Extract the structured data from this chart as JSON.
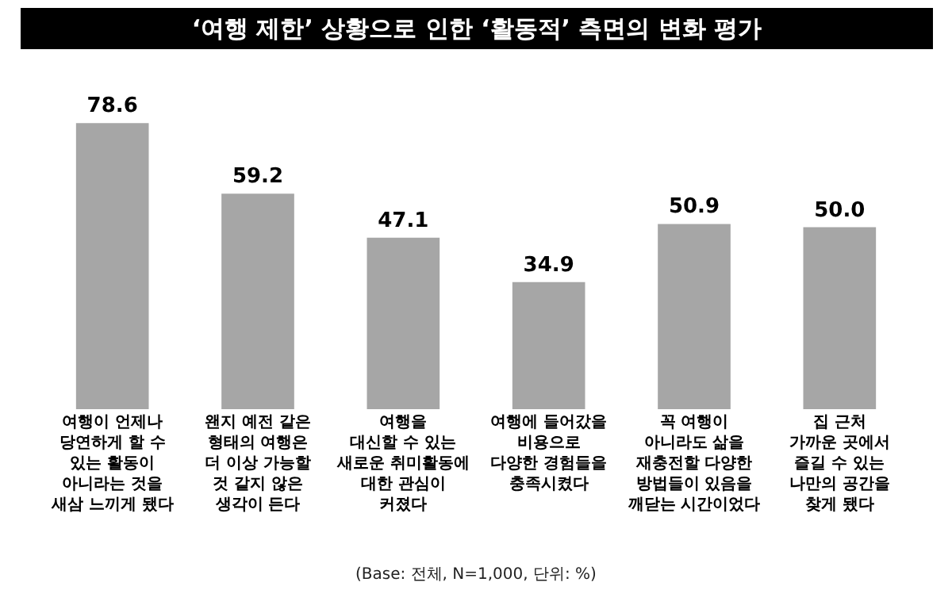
{
  "chart_data": {
    "type": "bar",
    "title": "‘여행 제한’ 상황으로 인한 ‘활동적’ 측면의 변화 평가",
    "categories": [
      "여행이 언제나\n당연하게 할 수\n있는 활동이\n아니라는 것을\n새삼 느끼게 됐다",
      "왠지 예전 같은\n형태의 여행은\n더 이상 가능할\n것 같지 않은\n생각이 든다",
      "여행을\n대신할 수 있는\n새로운 취미활동에\n대한 관심이\n커졌다",
      "여행에 들어갔을\n비용으로\n다양한 경험들을\n충족시켰다",
      "꼭 여행이\n아니라도 삶을\n재충전할 다양한\n방법들이 있음을\n깨닫는 시간이었다",
      "집 근처\n가까운 곳에서\n즐길 수 있는\n나만의 공간을\n찾게 됐다"
    ],
    "values": [
      78.6,
      59.2,
      47.1,
      34.9,
      50.9,
      50.0
    ],
    "value_labels": [
      "78.6",
      "59.2",
      "47.1",
      "34.9",
      "50.9",
      "50.0"
    ],
    "color": "#a6a6a6",
    "annotations": [
      "(Base: 전체, N=1,000, 단위: %)"
    ]
  }
}
